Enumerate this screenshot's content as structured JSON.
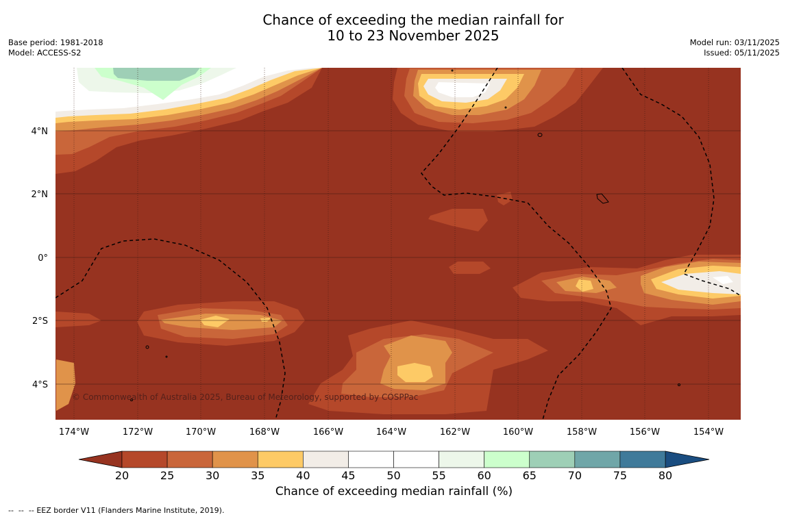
{
  "title": {
    "line1": "Chance of exceeding the median rainfall for",
    "line2": "10 to 23 November 2025"
  },
  "meta_left": {
    "base_period": "Base period: 1981-2018",
    "model": "Model: ACCESS-S2"
  },
  "meta_right": {
    "model_run": "Model run: 03/11/2025",
    "issued": "Issued: 05/11/2025"
  },
  "map": {
    "copyright": "© Commonwealth of Australia 2025, Bureau of Meteorology, supported by COSPPac",
    "background_color": "#973320",
    "lon_labels": [
      "174°W",
      "172°W",
      "170°W",
      "168°W",
      "166°W",
      "164°W",
      "162°W",
      "160°W",
      "158°W",
      "156°W",
      "154°W"
    ],
    "lat_labels": [
      "4°N",
      "2°N",
      "0°",
      "2°S",
      "4°S"
    ]
  },
  "colorbar": {
    "title": "Chance of exceeding median rainfall (%)",
    "ticks": [
      "20",
      "25",
      "30",
      "35",
      "40",
      "45",
      "50",
      "55",
      "60",
      "65",
      "70",
      "75",
      "80"
    ],
    "under_color": "#973320",
    "over_color": "#1a4d80",
    "colors": [
      "#b5482a",
      "#c9663a",
      "#e0934a",
      "#fdca66",
      "#f2ede7",
      "#ffffff",
      "#ffffff",
      "#edf7ea",
      "#ccffcc",
      "#9ecfb6",
      "#70a6a8",
      "#3f7a9a"
    ]
  },
  "footnote": {
    "dash": "--  --  --",
    "text": "EEZ border V11 (Flanders Marine Institute, 2019)."
  }
}
